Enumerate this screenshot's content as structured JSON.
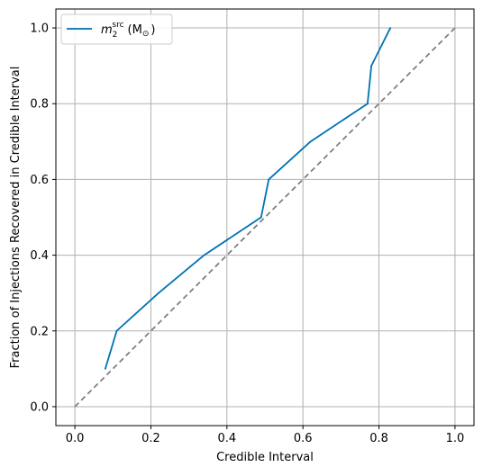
{
  "chart_data": {
    "type": "line",
    "title": "",
    "xlabel": "Credible Interval",
    "ylabel": "Fraction of Injections Recovered in Credible Interval",
    "xlim": [
      -0.05,
      1.05
    ],
    "ylim": [
      -0.05,
      1.05
    ],
    "xticks": [
      "0.0",
      "0.2",
      "0.4",
      "0.6",
      "0.8",
      "1.0"
    ],
    "yticks": [
      "0.0",
      "0.2",
      "0.4",
      "0.6",
      "0.8",
      "1.0"
    ],
    "grid": true,
    "legend_position": "top-left",
    "series": [
      {
        "name": "m₂^src (M☉)",
        "legend_main": "m",
        "legend_sub": "2",
        "legend_sup": "src",
        "legend_unit": "(M",
        "legend_unit_sub": "⊙",
        "legend_close": ")",
        "color": "#0072b2",
        "x": [
          0.08,
          0.11,
          0.22,
          0.34,
          0.49,
          0.51,
          0.62,
          0.77,
          0.78,
          0.83
        ],
        "y": [
          0.1,
          0.2,
          0.3,
          0.4,
          0.5,
          0.6,
          0.7,
          0.8,
          0.9,
          1.0
        ]
      }
    ],
    "reference_line": {
      "x": [
        0.0,
        1.0
      ],
      "y": [
        0.0,
        1.0
      ],
      "color": "#808080",
      "style": "dashed"
    },
    "colors": {
      "grid": "#b0b0b0",
      "axes": "#000000"
    }
  }
}
